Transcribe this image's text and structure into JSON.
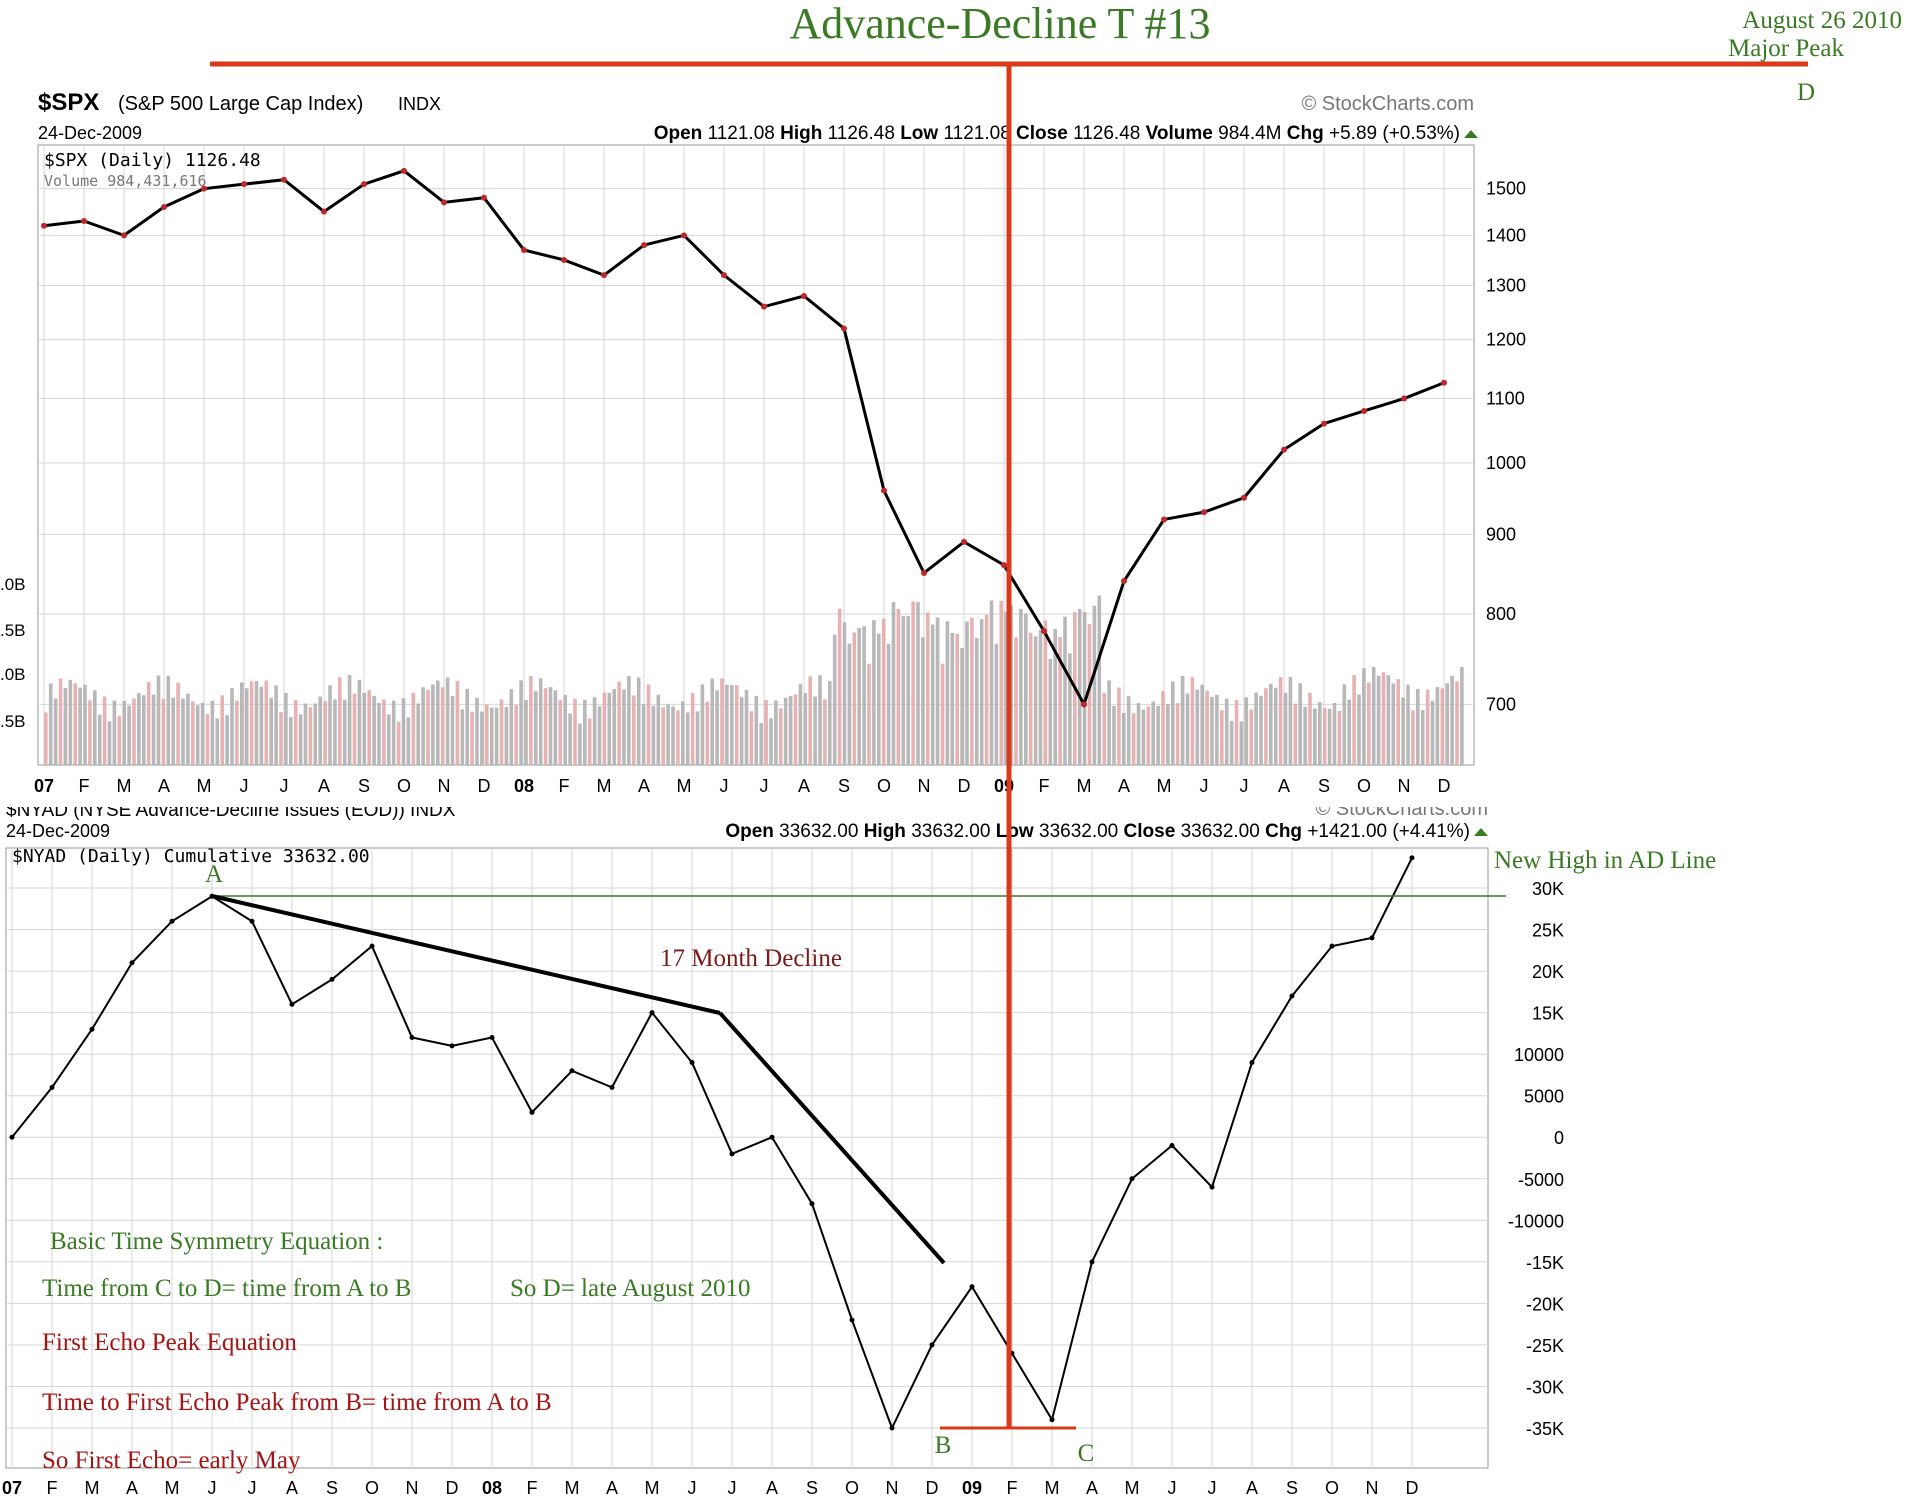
{
  "header": {
    "title": "Advance-Decline T #13",
    "date_note": "August 26 2010",
    "peak_note": "Major Peak",
    "point_d": "D"
  },
  "colors": {
    "green": "#3a7a24",
    "red": "#d83a1a",
    "dark_red": "#a31515",
    "grid": "#d6d6d6",
    "black": "#000000",
    "volume_gray": "#b0b0b0",
    "volume_pink": "#e3aaaa",
    "candle_red": "#c0272d"
  },
  "spx_panel": {
    "symbol": "$SPX",
    "description": "(S&P 500 Large Cap Index)",
    "exchange": "INDX",
    "watermark": "© StockCharts.com",
    "date": "24-Dec-2009",
    "quote": {
      "open_label": "Open",
      "open": "1121.08",
      "high_label": "High",
      "high": "1126.48",
      "low_label": "Low",
      "low": "1121.08",
      "close_label": "Close",
      "close": "1126.48",
      "volume_label": "Volume",
      "volume": "984.4M",
      "chg_label": "Chg",
      "chg": "+5.89 (+0.53%)"
    },
    "legend_price": "$SPX (Daily) 1126.48",
    "legend_volume": "Volume 984,431,616",
    "volume_axis_labels": [
      ".0B",
      ".5B",
      ".0B",
      ".5B"
    ]
  },
  "nyad_panel": {
    "title_clipped": "$NYAD (NYSE Advance-Decline Issues (EOD)) INDX",
    "watermark": "© StockCharts.com",
    "date": "24-Dec-2009",
    "quote": {
      "open_label": "Open",
      "open": "33632.00",
      "high_label": "High",
      "high": "33632.00",
      "low_label": "Low",
      "low": "33632.00",
      "close_label": "Close",
      "close": "33632.00",
      "chg_label": "Chg",
      "chg": "+1421.00 (+4.41%)"
    },
    "legend": "$NYAD (Daily) Cumulative 33632.00"
  },
  "annotations": {
    "point_a": "A",
    "point_b": "B",
    "point_c": "C",
    "new_high": "New High in AD Line",
    "decline": "17 Month Decline",
    "eq_title": "Basic Time Symmetry Equation :",
    "eq_line1": "Time from C to D= time from A to B",
    "eq_line1b": "So D= late August 2010",
    "echo_title": "First Echo Peak Equation",
    "echo_line1": "Time to First Echo Peak from B= time from A to B",
    "echo_line2": "So First Echo= early May"
  },
  "chart_data": [
    {
      "type": "line",
      "name": "$SPX (Daily)",
      "x": [
        "2007-01",
        "2007-02",
        "2007-03",
        "2007-04",
        "2007-05",
        "2007-06",
        "2007-07",
        "2007-08",
        "2007-09",
        "2007-10",
        "2007-11",
        "2007-12",
        "2008-01",
        "2008-02",
        "2008-03",
        "2008-04",
        "2008-05",
        "2008-06",
        "2008-07",
        "2008-08",
        "2008-09",
        "2008-10",
        "2008-11",
        "2008-12",
        "2009-01",
        "2009-02",
        "2009-03",
        "2009-04",
        "2009-05",
        "2009-06",
        "2009-07",
        "2009-08",
        "2009-09",
        "2009-10",
        "2009-11",
        "2009-12"
      ],
      "values": [
        1420,
        1430,
        1400,
        1460,
        1500,
        1510,
        1520,
        1450,
        1510,
        1540,
        1470,
        1480,
        1370,
        1350,
        1320,
        1380,
        1400,
        1320,
        1260,
        1280,
        1220,
        960,
        850,
        890,
        860,
        780,
        700,
        840,
        920,
        930,
        950,
        1020,
        1060,
        1080,
        1100,
        1126
      ],
      "ylim": [
        640,
        1600
      ],
      "y_scale": "log",
      "y_ticks": [
        700,
        800,
        900,
        1000,
        1100,
        1200,
        1300,
        1400,
        1500
      ],
      "x_tick_labels": [
        "07",
        "F",
        "M",
        "A",
        "M",
        "J",
        "J",
        "A",
        "S",
        "O",
        "N",
        "D",
        "08",
        "F",
        "M",
        "A",
        "M",
        "J",
        "J",
        "A",
        "S",
        "O",
        "N",
        "D",
        "09",
        "F",
        "M",
        "A",
        "M",
        "J",
        "J",
        "A",
        "S",
        "O",
        "N",
        "D"
      ],
      "volume_series": "Volume (bars, relative)",
      "grid": true
    },
    {
      "type": "line",
      "name": "$NYAD (Daily) Cumulative",
      "x": [
        "2007-01",
        "2007-02",
        "2007-03",
        "2007-04",
        "2007-05",
        "2007-06",
        "2007-07",
        "2007-08",
        "2007-09",
        "2007-10",
        "2007-11",
        "2007-12",
        "2008-01",
        "2008-02",
        "2008-03",
        "2008-04",
        "2008-05",
        "2008-06",
        "2008-07",
        "2008-08",
        "2008-09",
        "2008-10",
        "2008-11",
        "2008-12",
        "2009-01",
        "2009-02",
        "2009-03",
        "2009-04",
        "2009-05",
        "2009-06",
        "2009-07",
        "2009-08",
        "2009-09",
        "2009-10",
        "2009-11",
        "2009-12"
      ],
      "values": [
        0,
        6000,
        13000,
        21000,
        26000,
        29000,
        26000,
        16000,
        19000,
        23000,
        12000,
        11000,
        12000,
        3000,
        8000,
        6000,
        15000,
        9000,
        -2000,
        0,
        -8000,
        -22000,
        -35000,
        -25000,
        -18000,
        -26000,
        -34000,
        -15000,
        -5000,
        -1000,
        -6000,
        9000,
        17000,
        23000,
        24000,
        33632
      ],
      "ylim": [
        -37000,
        33000
      ],
      "y_ticks": [
        30000,
        25000,
        20000,
        15000,
        10000,
        5000,
        0,
        -5000,
        -10000,
        -15000,
        -20000,
        -25000,
        -30000,
        -35000
      ],
      "y_tick_labels": [
        "30K",
        "25K",
        "20K",
        "15K",
        "10000",
        "5000",
        "0",
        "-5000",
        "-10000",
        "-15K",
        "-20K",
        "-25K",
        "-30K",
        "-35K"
      ],
      "x_tick_labels": [
        "07",
        "F",
        "M",
        "A",
        "M",
        "J",
        "J",
        "A",
        "S",
        "O",
        "N",
        "D",
        "08",
        "F",
        "M",
        "A",
        "M",
        "J",
        "J",
        "A",
        "S",
        "O",
        "N",
        "D",
        "09",
        "F",
        "M",
        "A",
        "M",
        "J",
        "J",
        "A",
        "S",
        "O",
        "N",
        "D"
      ],
      "grid": true
    }
  ]
}
